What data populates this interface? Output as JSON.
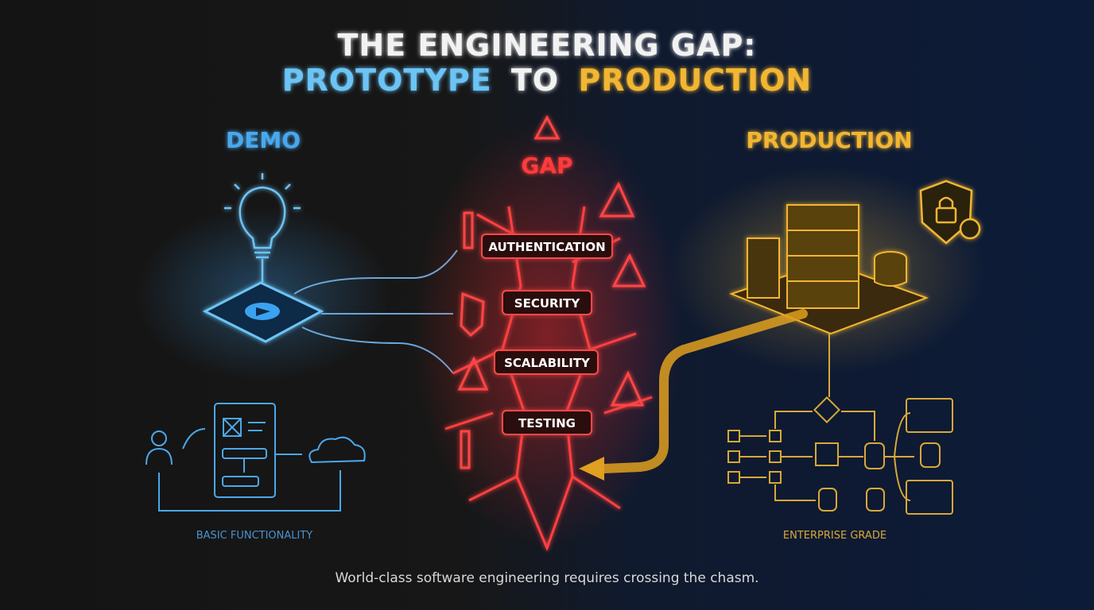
{
  "title": {
    "line1": "THE ENGINEERING GAP:",
    "line2_part1": "PROTOTYPE",
    "line2_part2": "TO",
    "line2_part3": "PRODUCTION"
  },
  "demo": {
    "heading": "DEMO",
    "caption": "BASIC FUNCTIONALITY"
  },
  "gap": {
    "heading": "GAP",
    "items": [
      "AUTHENTICATION",
      "SECURITY",
      "SCALABILITY",
      "TESTING"
    ]
  },
  "production": {
    "heading": "PRODUCTION",
    "caption": "ENTERPRISE GRADE"
  },
  "footer": "World-class software engineering requires crossing the chasm.",
  "colors": {
    "demo": "#4aa8ec",
    "gap": "#ff3b3b",
    "production": "#f2b632",
    "title": "#f2f2f2"
  }
}
